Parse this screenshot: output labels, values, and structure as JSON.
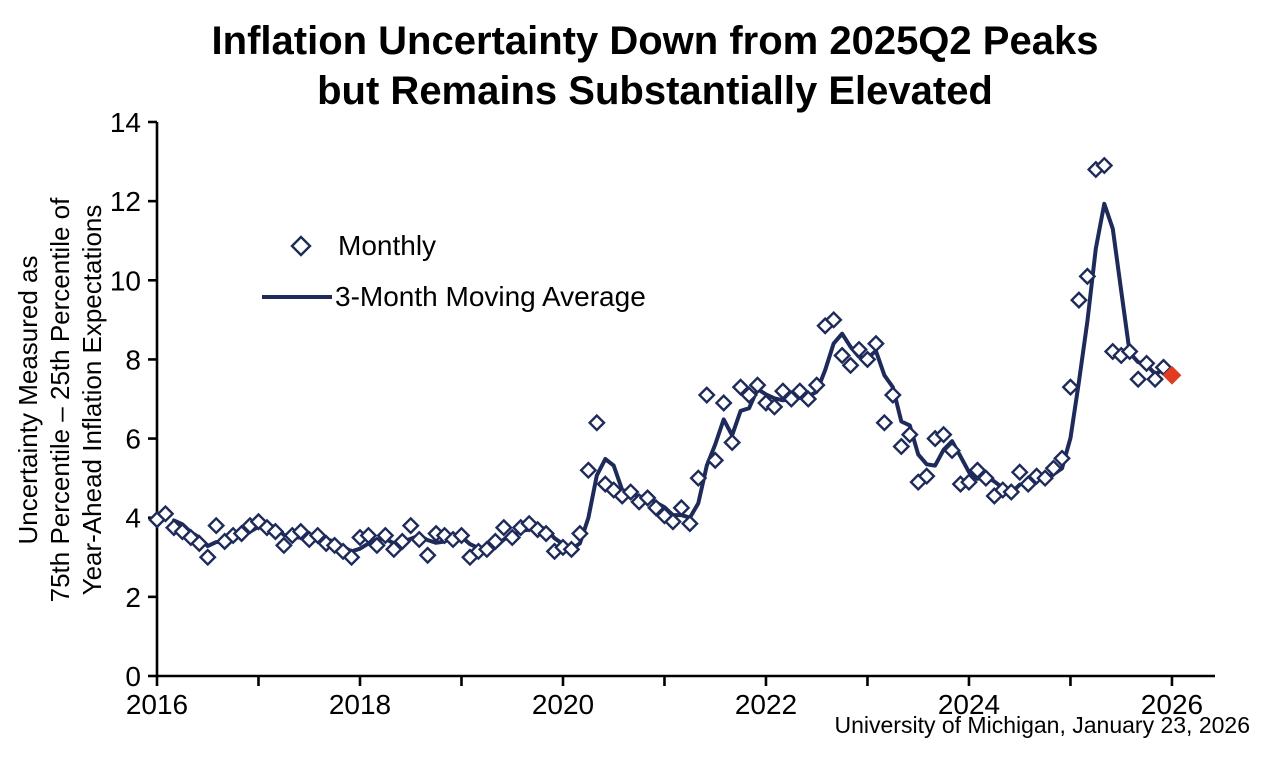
{
  "chart": {
    "title_line1": "Inflation Uncertainty Down from 2025Q2 Peaks",
    "title_line2": "but Remains Substantially Elevated",
    "y_axis_title_lines": [
      "Uncertainty Measured as",
      "75th Percentile – 25th Percentile of",
      "Year-Ahead Inflation Expectations"
    ],
    "legend": {
      "monthly": "Monthly",
      "moving_average": "3-Month Moving Average"
    },
    "source": "University of Michigan, January 23, 2026"
  },
  "chart_data": {
    "type": "scatter+line",
    "title": "Inflation Uncertainty Down from 2025Q2 Peaks but Remains Substantially Elevated",
    "ylabel": "Uncertainty Measured as 75th Percentile – 25th Percentile of Year-Ahead Inflation Expectations",
    "xlabel": "",
    "grid": false,
    "legend_position": "upper-left-inside",
    "ylim": [
      0,
      14
    ],
    "y_ticks": [
      0,
      2,
      4,
      6,
      8,
      10,
      12,
      14
    ],
    "x_ticks_years": [
      2016,
      2017,
      2018,
      2019,
      2020,
      2021,
      2022,
      2023,
      2024,
      2025,
      2026
    ],
    "x_tick_labels": [
      "2016",
      "2018",
      "2020",
      "2022",
      "2024",
      "2026"
    ],
    "colors": {
      "navy": "#1e2b5a",
      "red": "#e03c22",
      "axis": "#000000"
    },
    "monthly_start": "2016-01",
    "monthly_values_by_year": {
      "2016": [
        3.95,
        4.1,
        3.75,
        3.65,
        3.5,
        3.35,
        3.0,
        3.8,
        3.4,
        3.55,
        3.6,
        3.8
      ],
      "2017": [
        3.9,
        3.75,
        3.65,
        3.3,
        3.55,
        3.65,
        3.45,
        3.55,
        3.35,
        3.3,
        3.15,
        3.0
      ],
      "2018": [
        3.5,
        3.55,
        3.3,
        3.55,
        3.2,
        3.4,
        3.8,
        3.45,
        3.05,
        3.6,
        3.55,
        3.45
      ],
      "2019": [
        3.55,
        3.0,
        3.15,
        3.2,
        3.4,
        3.75,
        3.5,
        3.75,
        3.85,
        3.7,
        3.6,
        3.15
      ],
      "2020": [
        3.25,
        3.2,
        3.6,
        5.2,
        6.4,
        4.85,
        4.7,
        4.55,
        4.65,
        4.4,
        4.5,
        4.25
      ],
      "2021": [
        4.05,
        3.9,
        4.25,
        3.85,
        5.0,
        7.1,
        5.45,
        6.9,
        5.9,
        7.3,
        7.1,
        7.35
      ],
      "2022": [
        6.9,
        6.8,
        7.2,
        7.0,
        7.2,
        7.0,
        7.35,
        8.85,
        9.0,
        8.1,
        7.85,
        8.25
      ],
      "2023": [
        8.0,
        8.4,
        6.4,
        7.1,
        5.8,
        6.1,
        4.9,
        5.05,
        6.0,
        6.1,
        5.7,
        4.85
      ],
      "2024": [
        4.9,
        5.2,
        5.0,
        4.55,
        4.7,
        4.65,
        5.15,
        4.85,
        5.05,
        5.0,
        5.25,
        5.5
      ],
      "2025": [
        7.3,
        9.5,
        10.1,
        12.8,
        12.9,
        8.2,
        8.1,
        8.2,
        7.5,
        7.9,
        7.5,
        7.8
      ]
    },
    "latest_point": {
      "date": "2026-01",
      "value": 7.6,
      "marker": "filled-diamond",
      "color": "#e03c22"
    },
    "series": [
      {
        "name": "Monthly",
        "type": "scatter",
        "marker": "open-diamond",
        "color": "#1e2b5a"
      },
      {
        "name": "3-Month Moving Average",
        "type": "line",
        "color": "#1e2b5a",
        "derived": "trailing 3-month mean of Monthly values"
      }
    ]
  }
}
